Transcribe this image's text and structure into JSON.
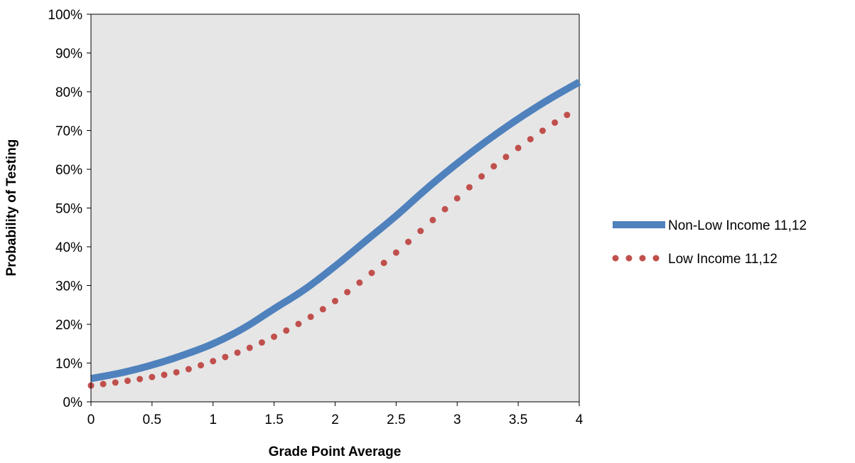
{
  "chart_data": {
    "type": "line",
    "title": "",
    "xlabel": "Grade Point Average",
    "ylabel": "Probability of Testing",
    "xlim": [
      0,
      4
    ],
    "ylim": [
      0,
      1
    ],
    "x_ticks": [
      "0",
      "0.5",
      "1",
      "1.5",
      "2",
      "2.5",
      "3",
      "3.5",
      "4"
    ],
    "y_ticks": [
      "0%",
      "10%",
      "20%",
      "30%",
      "40%",
      "50%",
      "60%",
      "70%",
      "80%",
      "90%",
      "100%"
    ],
    "grid": false,
    "plot_background": "#e6e6e6",
    "legend_position": "right",
    "series": [
      {
        "name": "Non-Low Income 11,12",
        "style": "solid-thick",
        "color": "#4f81bd",
        "x": [
          0,
          0.25,
          0.5,
          0.75,
          1,
          1.25,
          1.5,
          1.75,
          2,
          2.25,
          2.5,
          2.75,
          3,
          3.25,
          3.5,
          3.75,
          4
        ],
        "values": [
          0.06,
          0.075,
          0.095,
          0.12,
          0.15,
          0.19,
          0.24,
          0.29,
          0.35,
          0.415,
          0.48,
          0.55,
          0.615,
          0.675,
          0.73,
          0.78,
          0.825
        ]
      },
      {
        "name": "Low Income 11,12",
        "style": "dotted",
        "color": "#c0504d",
        "x": [
          0,
          0.25,
          0.5,
          0.75,
          1,
          1.25,
          1.5,
          1.75,
          2,
          2.25,
          2.5,
          2.75,
          3,
          3.25,
          3.5,
          3.75,
          4
        ],
        "values": [
          0.042,
          0.052,
          0.064,
          0.08,
          0.105,
          0.133,
          0.168,
          0.21,
          0.26,
          0.32,
          0.385,
          0.455,
          0.525,
          0.595,
          0.655,
          0.71,
          0.76
        ]
      }
    ]
  }
}
